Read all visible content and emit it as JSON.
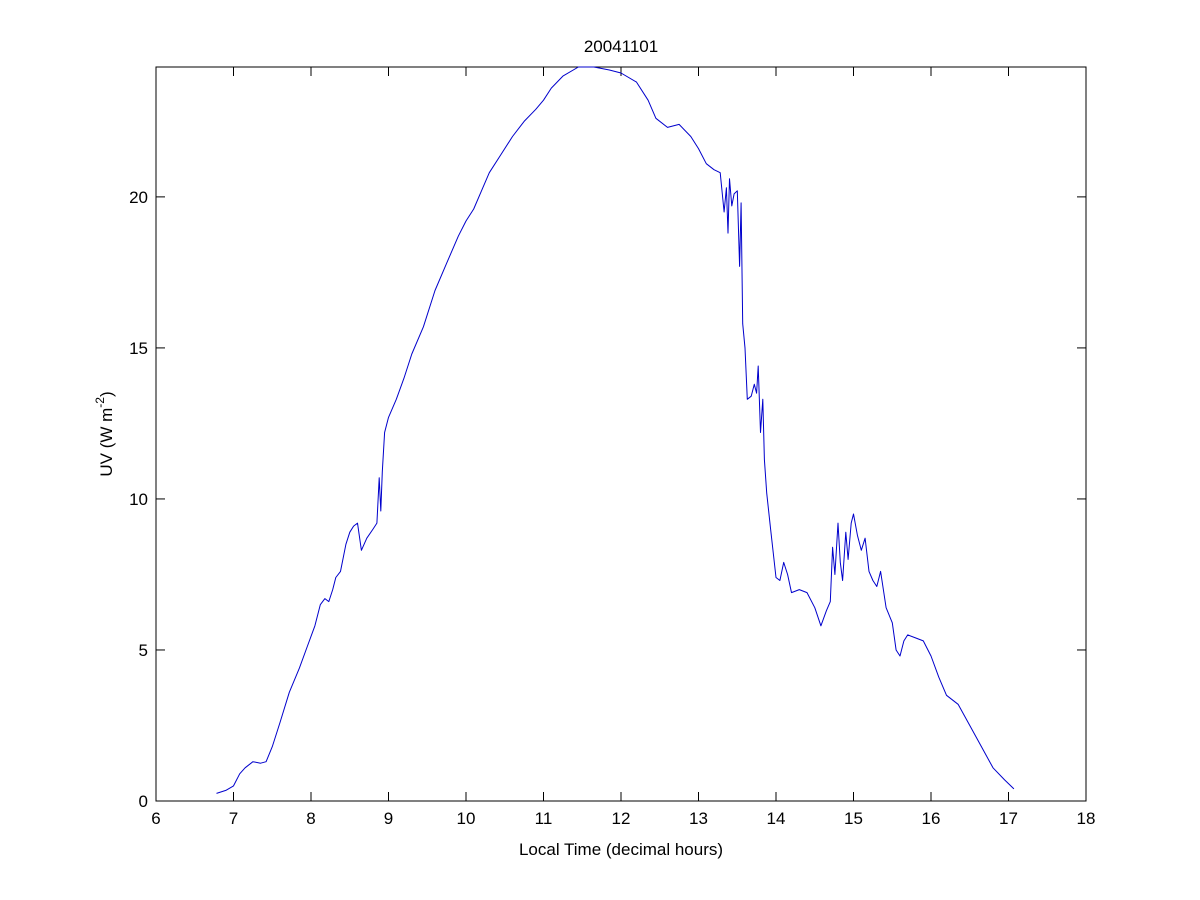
{
  "chart_data": {
    "type": "line",
    "title": "20041101",
    "xlabel": "Local Time (decimal hours)",
    "ylabel": {
      "main": "UV (W m",
      "superscript": "-2",
      "close": ")"
    },
    "xlim": [
      6,
      18
    ],
    "ylim": [
      0,
      24.3
    ],
    "xticks": [
      6,
      7,
      8,
      9,
      10,
      11,
      12,
      13,
      14,
      15,
      16,
      17,
      18
    ],
    "yticks": [
      0,
      5,
      10,
      15,
      20
    ],
    "grid": false,
    "legend": "none",
    "series": [
      {
        "color": "#0000cc",
        "x": [
          6.78,
          6.9,
          7.0,
          7.08,
          7.15,
          7.25,
          7.35,
          7.42,
          7.5,
          7.6,
          7.72,
          7.85,
          7.95,
          8.05,
          8.12,
          8.18,
          8.23,
          8.28,
          8.32,
          8.38,
          8.45,
          8.5,
          8.55,
          8.6,
          8.65,
          8.72,
          8.8,
          8.85,
          8.88,
          8.9,
          8.92,
          8.95,
          9.0,
          9.1,
          9.2,
          9.3,
          9.45,
          9.6,
          9.75,
          9.9,
          10.0,
          10.1,
          10.2,
          10.3,
          10.45,
          10.6,
          10.75,
          10.9,
          11.0,
          11.1,
          11.25,
          11.45,
          11.65,
          11.85,
          12.0,
          12.2,
          12.35,
          12.45,
          12.6,
          12.75,
          12.9,
          13.0,
          13.1,
          13.2,
          13.28,
          13.33,
          13.36,
          13.38,
          13.4,
          13.43,
          13.46,
          13.5,
          13.53,
          13.55,
          13.57,
          13.6,
          13.63,
          13.68,
          13.72,
          13.75,
          13.77,
          13.8,
          13.83,
          13.85,
          13.88,
          13.93,
          14.0,
          14.05,
          14.1,
          14.15,
          14.2,
          14.3,
          14.4,
          14.5,
          14.58,
          14.65,
          14.7,
          14.73,
          14.76,
          14.8,
          14.83,
          14.86,
          14.9,
          14.93,
          14.97,
          15.0,
          15.05,
          15.1,
          15.15,
          15.2,
          15.25,
          15.3,
          15.35,
          15.42,
          15.5,
          15.55,
          15.6,
          15.65,
          15.7,
          15.8,
          15.9,
          16.0,
          16.1,
          16.2,
          16.35,
          16.5,
          16.65,
          16.8,
          16.95,
          17.07
        ],
        "y": [
          0.25,
          0.35,
          0.5,
          0.9,
          1.1,
          1.3,
          1.25,
          1.3,
          1.8,
          2.6,
          3.6,
          4.4,
          5.1,
          5.8,
          6.5,
          6.7,
          6.6,
          7.0,
          7.4,
          7.6,
          8.5,
          8.9,
          9.1,
          9.2,
          8.3,
          8.7,
          9.0,
          9.2,
          10.7,
          9.6,
          10.9,
          12.2,
          12.7,
          13.3,
          14.0,
          14.8,
          15.7,
          16.9,
          17.8,
          18.7,
          19.2,
          19.6,
          20.2,
          20.8,
          21.4,
          22.0,
          22.5,
          22.9,
          23.2,
          23.6,
          24.0,
          24.3,
          24.3,
          24.2,
          24.1,
          23.8,
          23.2,
          22.6,
          22.3,
          22.4,
          22.0,
          21.6,
          21.1,
          20.9,
          20.8,
          19.5,
          20.3,
          18.8,
          20.6,
          19.7,
          20.1,
          20.2,
          17.7,
          19.8,
          15.8,
          15.0,
          13.3,
          13.4,
          13.8,
          13.5,
          14.4,
          12.2,
          13.3,
          11.3,
          10.2,
          9.0,
          7.4,
          7.3,
          7.9,
          7.5,
          6.9,
          7.0,
          6.9,
          6.4,
          5.8,
          6.3,
          6.6,
          8.4,
          7.5,
          9.2,
          7.9,
          7.3,
          8.9,
          8.0,
          9.2,
          9.5,
          8.8,
          8.3,
          8.7,
          7.6,
          7.3,
          7.1,
          7.6,
          6.4,
          5.9,
          5.0,
          4.8,
          5.3,
          5.5,
          5.4,
          5.3,
          4.8,
          4.1,
          3.5,
          3.2,
          2.5,
          1.8,
          1.1,
          0.7,
          0.4
        ]
      }
    ]
  }
}
